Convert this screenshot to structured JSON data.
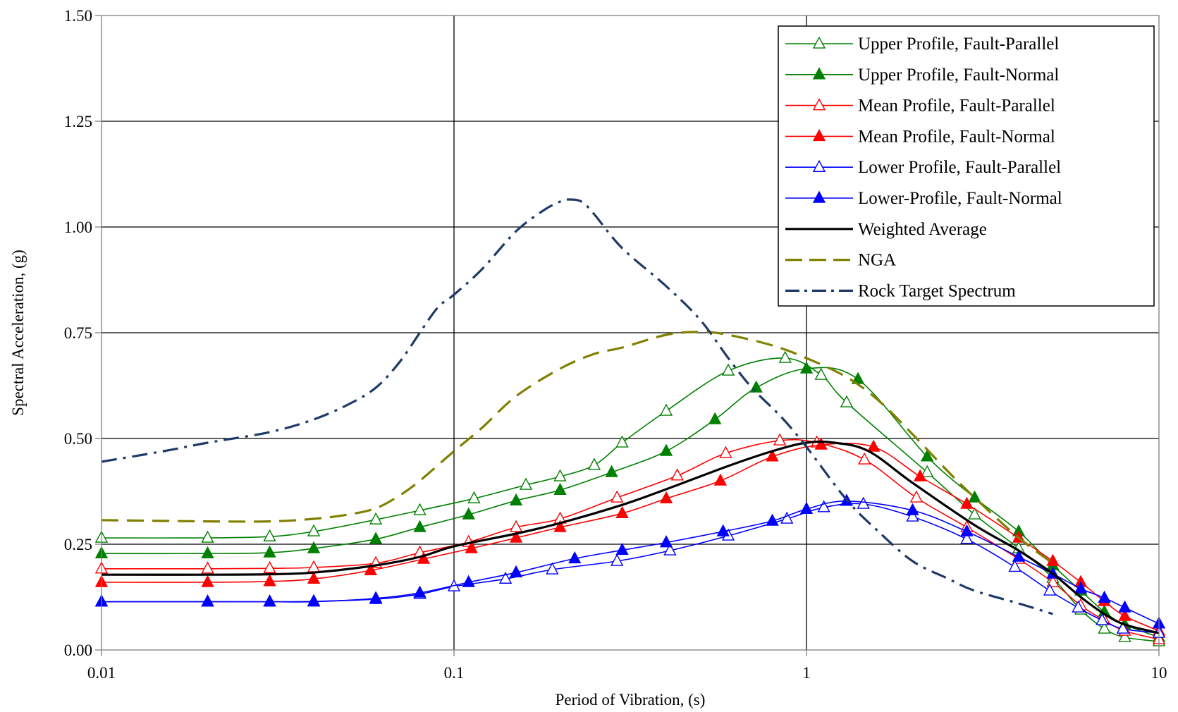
{
  "chart_data": {
    "type": "line",
    "xscale": "log",
    "xlim": [
      0.01,
      10
    ],
    "ylim": [
      0,
      1.5
    ],
    "xlabel": "Period of Vibration, (s)",
    "ylabel": "Spectral Acceleration, (g)",
    "xticks": [
      "0.01",
      "0.1",
      "1",
      "10"
    ],
    "yticks": [
      "0.00",
      "0.25",
      "0.50",
      "0.75",
      "1.00",
      "1.25",
      "1.50"
    ],
    "grid": true,
    "legend_position": "top-right",
    "series": [
      {
        "name": "Upper Profile, Fault-Parallel",
        "color": "#008000",
        "marker": "triangle-open",
        "dash": "solid",
        "x": [
          0.01,
          0.02,
          0.03,
          0.04,
          0.06,
          0.08,
          0.114,
          0.16,
          0.2,
          0.25,
          0.3,
          0.4,
          0.6,
          0.87,
          1.1,
          1.3,
          2.2,
          3.0,
          4.0,
          5.0,
          6.0,
          7.0,
          8.0,
          10.0
        ],
        "y": [
          0.265,
          0.265,
          0.268,
          0.28,
          0.308,
          0.33,
          0.358,
          0.39,
          0.41,
          0.437,
          0.49,
          0.565,
          0.66,
          0.69,
          0.65,
          0.585,
          0.42,
          0.32,
          0.24,
          0.17,
          0.095,
          0.05,
          0.03,
          0.02
        ]
      },
      {
        "name": "Upper Profile, Fault-Normal",
        "color": "#008000",
        "marker": "triangle-filled",
        "dash": "solid",
        "x": [
          0.01,
          0.02,
          0.03,
          0.04,
          0.06,
          0.08,
          0.11,
          0.15,
          0.2,
          0.28,
          0.4,
          0.55,
          0.72,
          1.0,
          1.4,
          2.2,
          3.0,
          4.0,
          5.0,
          6.0,
          7.0,
          8.0,
          10.0
        ],
        "y": [
          0.228,
          0.228,
          0.23,
          0.24,
          0.262,
          0.29,
          0.32,
          0.353,
          0.378,
          0.42,
          0.47,
          0.545,
          0.62,
          0.665,
          0.64,
          0.457,
          0.36,
          0.28,
          0.2,
          0.14,
          0.09,
          0.06,
          0.03
        ]
      },
      {
        "name": "Mean Profile, Fault-Parallel",
        "color": "#ff0000",
        "marker": "triangle-open",
        "dash": "solid",
        "x": [
          0.01,
          0.02,
          0.03,
          0.04,
          0.06,
          0.08,
          0.11,
          0.15,
          0.2,
          0.29,
          0.43,
          0.59,
          0.84,
          1.07,
          1.46,
          2.05,
          2.85,
          4.0,
          5.0,
          6.0,
          7.0,
          8.0,
          10.0
        ],
        "y": [
          0.192,
          0.192,
          0.193,
          0.195,
          0.205,
          0.23,
          0.255,
          0.29,
          0.31,
          0.36,
          0.412,
          0.465,
          0.495,
          0.49,
          0.45,
          0.36,
          0.29,
          0.215,
          0.16,
          0.105,
          0.07,
          0.045,
          0.025
        ]
      },
      {
        "name": "Mean Profile, Fault-Normal",
        "color": "#ff0000",
        "marker": "triangle-filled",
        "dash": "solid",
        "x": [
          0.01,
          0.02,
          0.03,
          0.04,
          0.058,
          0.082,
          0.112,
          0.15,
          0.2,
          0.3,
          0.4,
          0.57,
          0.8,
          1.1,
          1.55,
          2.1,
          2.85,
          4.0,
          5.0,
          6.0,
          7.0,
          8.0,
          10.0
        ],
        "y": [
          0.16,
          0.16,
          0.162,
          0.168,
          0.188,
          0.215,
          0.24,
          0.265,
          0.29,
          0.323,
          0.358,
          0.4,
          0.457,
          0.485,
          0.48,
          0.41,
          0.345,
          0.265,
          0.21,
          0.16,
          0.115,
          0.08,
          0.045
        ]
      },
      {
        "name": "Lower Profile, Fault-Parallel",
        "color": "#0000ff",
        "marker": "triangle-open",
        "dash": "solid",
        "x": [
          0.01,
          0.02,
          0.03,
          0.04,
          0.06,
          0.08,
          0.1,
          0.14,
          0.19,
          0.29,
          0.41,
          0.6,
          0.88,
          1.12,
          1.45,
          2.0,
          2.85,
          3.9,
          4.9,
          5.9,
          6.9,
          7.9,
          10.0
        ],
        "y": [
          0.114,
          0.114,
          0.114,
          0.115,
          0.12,
          0.132,
          0.15,
          0.168,
          0.19,
          0.21,
          0.235,
          0.27,
          0.31,
          0.337,
          0.345,
          0.315,
          0.262,
          0.196,
          0.14,
          0.1,
          0.07,
          0.05,
          0.04
        ]
      },
      {
        "name": "Lower-Profile, Fault-Normal",
        "color": "#0000ff",
        "marker": "triangle-filled",
        "dash": "solid",
        "x": [
          0.01,
          0.02,
          0.03,
          0.04,
          0.06,
          0.08,
          0.11,
          0.15,
          0.22,
          0.3,
          0.4,
          0.58,
          0.8,
          1.0,
          1.3,
          2.0,
          2.85,
          4.0,
          5.0,
          6.0,
          7.0,
          8.0,
          10.0
        ],
        "y": [
          0.114,
          0.114,
          0.114,
          0.114,
          0.122,
          0.135,
          0.16,
          0.183,
          0.216,
          0.236,
          0.254,
          0.28,
          0.305,
          0.333,
          0.352,
          0.33,
          0.28,
          0.22,
          0.18,
          0.145,
          0.123,
          0.1,
          0.062
        ]
      },
      {
        "name": "Weighted Average",
        "color": "#000000",
        "marker": "none",
        "dash": "solid",
        "x": [
          0.01,
          0.02,
          0.03,
          0.04,
          0.06,
          0.08,
          0.1,
          0.15,
          0.2,
          0.3,
          0.4,
          0.6,
          0.8,
          1.0,
          1.2,
          1.5,
          2.0,
          3.0,
          4.0,
          5.0,
          6.0,
          7.0,
          8.0,
          10.0
        ],
        "y": [
          0.178,
          0.178,
          0.179,
          0.183,
          0.2,
          0.22,
          0.245,
          0.275,
          0.3,
          0.343,
          0.38,
          0.435,
          0.47,
          0.49,
          0.49,
          0.47,
          0.395,
          0.295,
          0.235,
          0.18,
          0.125,
          0.085,
          0.06,
          0.04
        ]
      },
      {
        "name": "NGA",
        "color": "#808000",
        "marker": "none",
        "dash": "dashed",
        "x": [
          0.01,
          0.02,
          0.03,
          0.04,
          0.05,
          0.06,
          0.07,
          0.08,
          0.1,
          0.12,
          0.15,
          0.2,
          0.25,
          0.3,
          0.4,
          0.5,
          0.6,
          0.8,
          1.0,
          1.3,
          1.6,
          2.0,
          2.5,
          3.0,
          4.0,
          5.0
        ],
        "y": [
          0.307,
          0.304,
          0.304,
          0.31,
          0.32,
          0.335,
          0.365,
          0.4,
          0.47,
          0.525,
          0.6,
          0.665,
          0.7,
          0.715,
          0.745,
          0.752,
          0.745,
          0.72,
          0.69,
          0.645,
          0.59,
          0.51,
          0.425,
          0.36,
          0.265,
          0.205
        ]
      },
      {
        "name": "Rock Target Spectrum",
        "color": "#1f3a68",
        "marker": "none",
        "dash": "dashdot",
        "x": [
          0.01,
          0.015,
          0.02,
          0.03,
          0.04,
          0.05,
          0.06,
          0.07,
          0.08,
          0.09,
          0.1,
          0.12,
          0.15,
          0.18,
          0.2,
          0.21,
          0.23,
          0.25,
          0.3,
          0.4,
          0.5,
          0.6,
          0.7,
          0.85,
          1.0,
          1.3,
          1.6,
          2.0,
          2.5,
          3.0,
          4.0,
          5.0
        ],
        "y": [
          0.445,
          0.47,
          0.49,
          0.515,
          0.545,
          0.58,
          0.62,
          0.68,
          0.75,
          0.81,
          0.84,
          0.9,
          0.99,
          1.04,
          1.06,
          1.065,
          1.06,
          1.03,
          0.95,
          0.86,
          0.78,
          0.69,
          0.62,
          0.55,
          0.48,
          0.355,
          0.28,
          0.21,
          0.17,
          0.14,
          0.11,
          0.085
        ]
      }
    ]
  }
}
